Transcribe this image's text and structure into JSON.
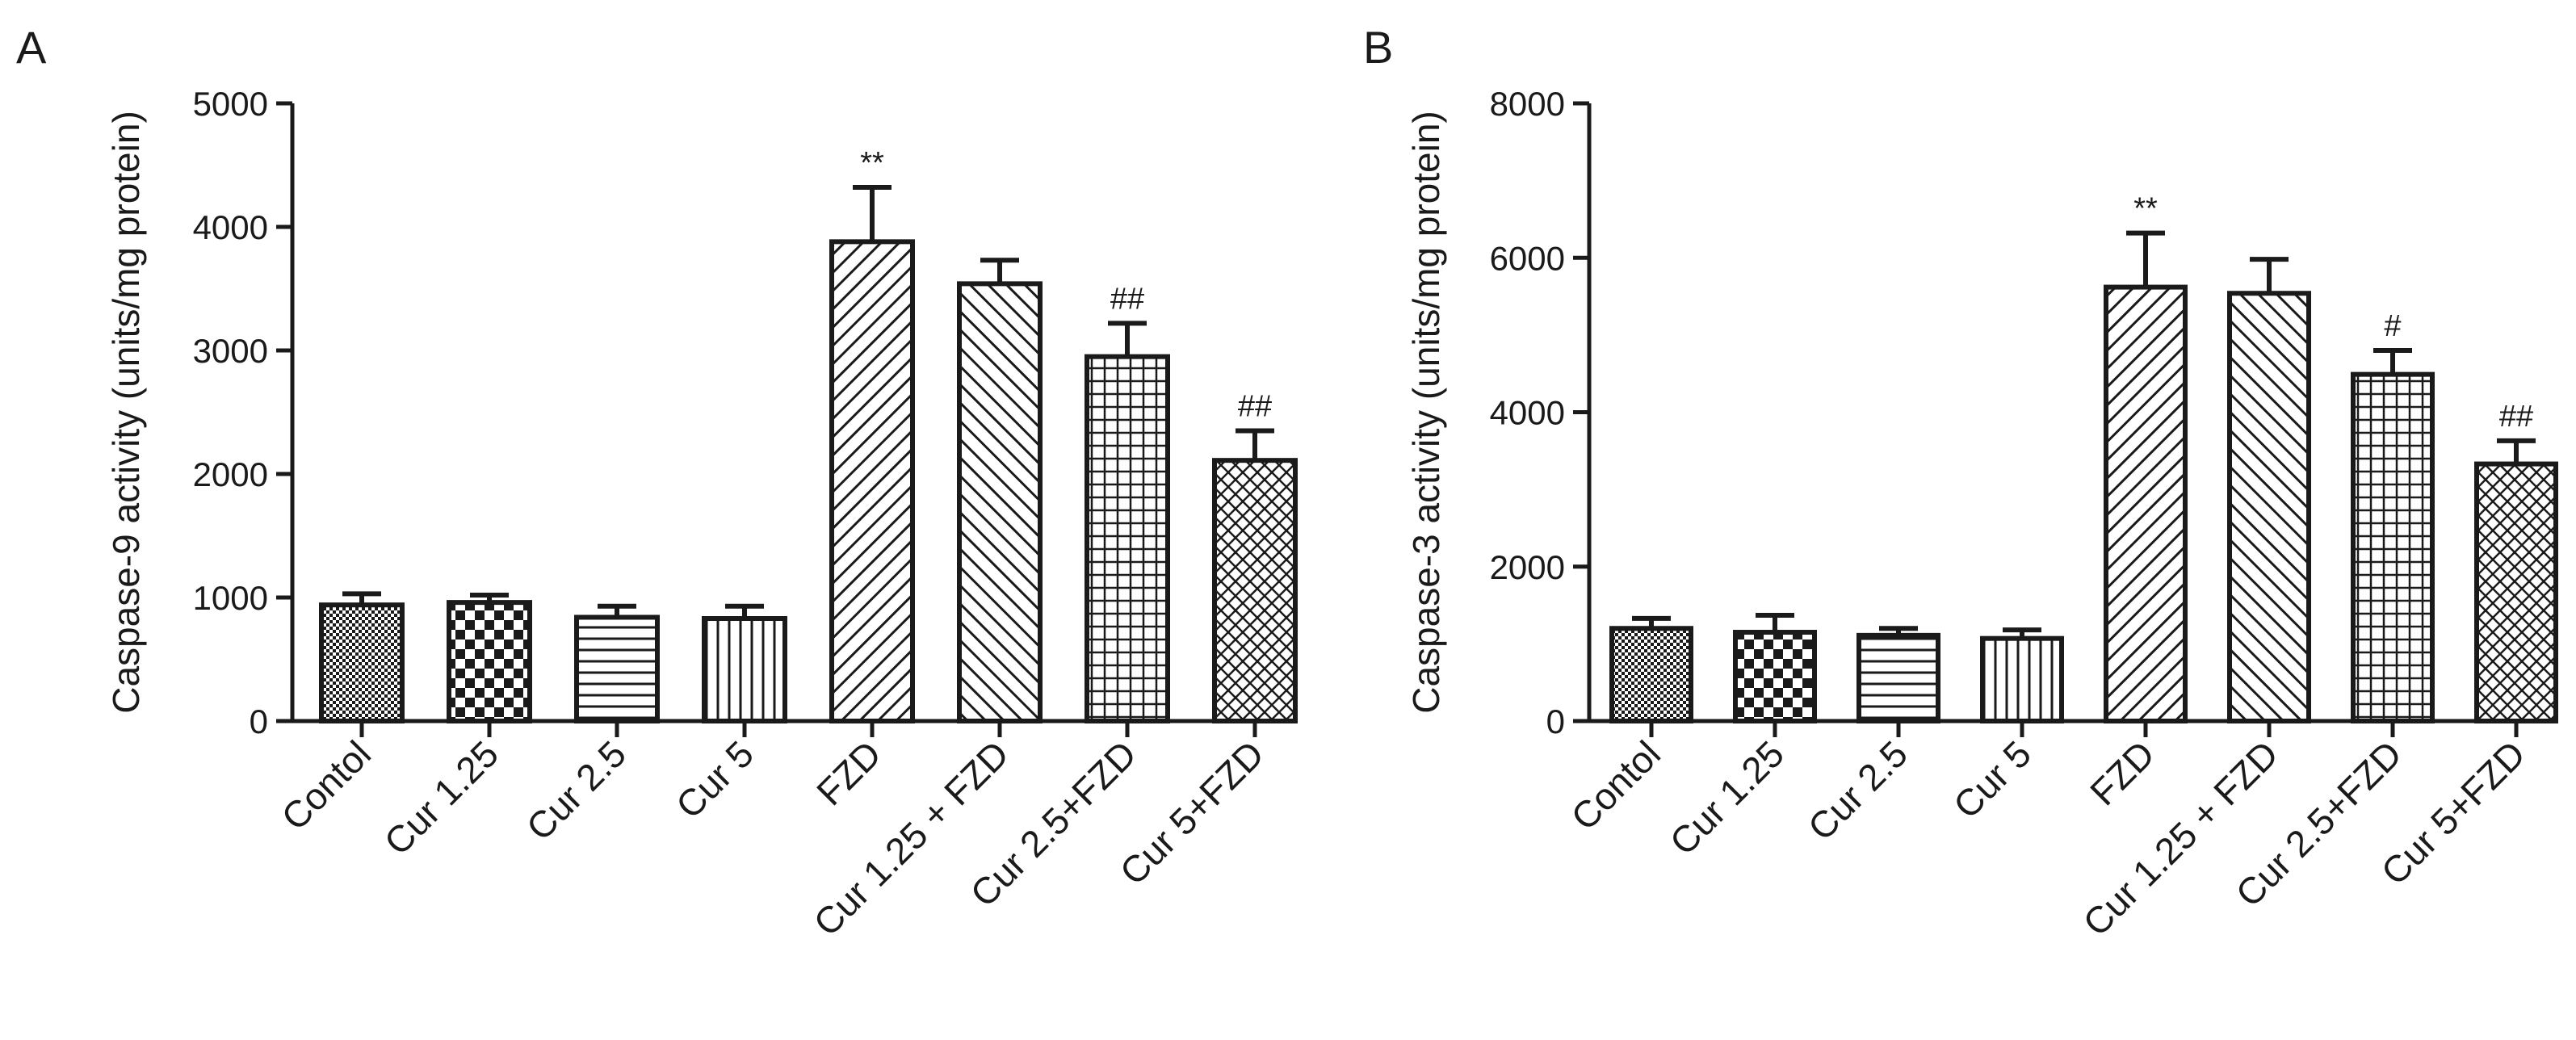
{
  "chart_data": [
    {
      "panel": "A",
      "type": "bar",
      "title": "",
      "xlabel": "",
      "ylabel": "Caspase-9 activity (units/mg protein)",
      "ylim": [
        0,
        5000
      ],
      "yticks": [
        "0",
        "1000",
        "2000",
        "3000",
        "4000",
        "5000"
      ],
      "categories": [
        "Contol",
        "Cur 1.25",
        "Cur 2.5",
        "Cur 5",
        "FZD",
        "Cur 1.25 + FZD",
        "Cur 2.5+FZD",
        "Cur 5+FZD"
      ],
      "values": [
        940,
        960,
        840,
        830,
        3880,
        3540,
        2950,
        2110
      ],
      "errors": [
        90,
        60,
        90,
        100,
        440,
        190,
        270,
        240
      ],
      "annotations": [
        "",
        "",
        "",
        "",
        "**",
        "",
        "##",
        "##"
      ],
      "patterns": [
        "dots",
        "checker",
        "hlines",
        "vlines",
        "diag-right",
        "diag-left",
        "grid",
        "crosshatch"
      ]
    },
    {
      "panel": "B",
      "type": "bar",
      "title": "",
      "xlabel": "",
      "ylabel": "Caspase-3 activity (units/mg protein)",
      "ylim": [
        0,
        8000
      ],
      "yticks": [
        "0",
        "2000",
        "4000",
        "6000",
        "8000"
      ],
      "categories": [
        "Contol",
        "Cur 1.25",
        "Cur 2.5",
        "Cur 5",
        "FZD",
        "Cur 1.25 + FZD",
        "Cur 2.5+FZD",
        "Cur 5+FZD"
      ],
      "values": [
        1200,
        1150,
        1110,
        1070,
        5620,
        5540,
        4490,
        3330
      ],
      "errors": [
        130,
        220,
        90,
        110,
        700,
        440,
        310,
        300
      ],
      "annotations": [
        "",
        "",
        "",
        "",
        "**",
        "",
        "#",
        "##"
      ],
      "patterns": [
        "dots",
        "checker",
        "hlines",
        "vlines",
        "diag-right",
        "diag-left",
        "grid",
        "crosshatch"
      ]
    }
  ]
}
